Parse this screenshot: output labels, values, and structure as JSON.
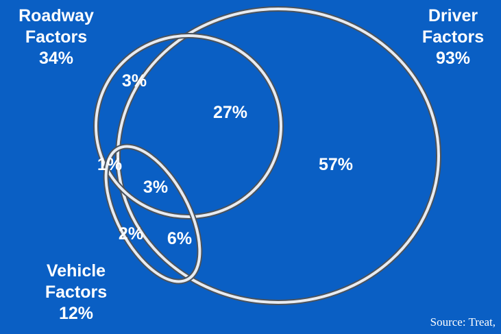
{
  "colors": {
    "background": "#0a5fc4",
    "ring": "#e8ecf2",
    "ring_shadow": "#5a6470",
    "text": "#ffffff"
  },
  "sets": {
    "roadway": {
      "name_line1": "Roadway",
      "name_line2": "Factors",
      "percent": "34%"
    },
    "driver": {
      "name_line1": "Driver",
      "name_line2": "Factors",
      "percent": "93%"
    },
    "vehicle": {
      "name_line1": "Vehicle",
      "name_line2": "Factors",
      "percent": "12%"
    }
  },
  "regions": {
    "roadway_only": "3%",
    "roadway_driver": "27%",
    "driver_only": "57%",
    "roadway_vehicle": "1%",
    "all_three": "3%",
    "vehicle_only": "2%",
    "driver_vehicle": "6%"
  },
  "source": "Source: Treat,"
}
